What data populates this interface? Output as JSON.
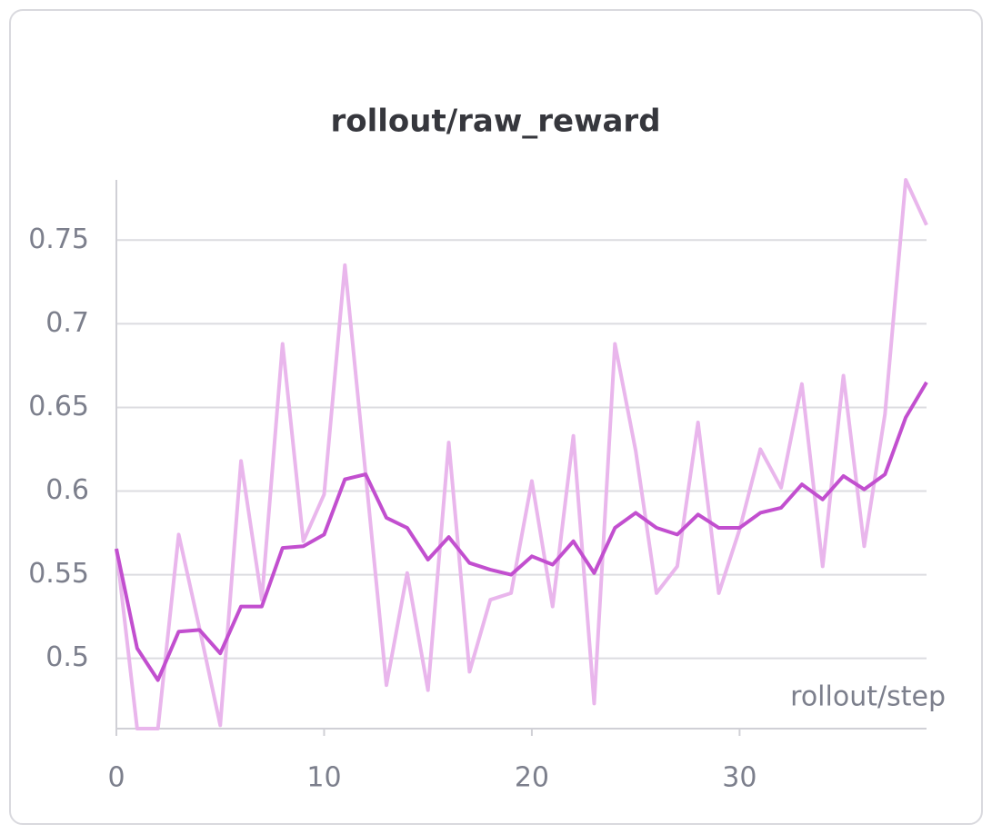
{
  "chart_data": {
    "type": "line",
    "title": "rollout/raw_reward",
    "x_label": "rollout/step",
    "x": [
      0,
      1,
      2,
      3,
      4,
      5,
      6,
      7,
      8,
      9,
      10,
      11,
      12,
      13,
      14,
      15,
      16,
      17,
      18,
      19,
      20,
      21,
      22,
      23,
      24,
      25,
      26,
      27,
      28,
      29,
      30,
      31,
      32,
      33,
      34,
      35,
      36,
      37,
      38,
      39
    ],
    "series": [
      {
        "color": "#e9b6ec",
        "values": [
          0.5655,
          0.458,
          0.458,
          0.574,
          0.518,
          0.46,
          0.618,
          0.535,
          0.688,
          0.57,
          0.598,
          0.735,
          0.61,
          0.484,
          0.551,
          0.481,
          0.629,
          0.492,
          0.535,
          0.539,
          0.606,
          0.531,
          0.633,
          0.473,
          0.688,
          0.624,
          0.539,
          0.555,
          0.641,
          0.539,
          0.577,
          0.625,
          0.602,
          0.664,
          0.555,
          0.669,
          0.567,
          0.646,
          0.786,
          0.759
        ]
      },
      {
        "color": "#c24fcf",
        "values": [
          0.5655,
          0.506,
          0.487,
          0.516,
          0.517,
          0.503,
          0.531,
          0.531,
          0.566,
          0.567,
          0.574,
          0.607,
          0.61,
          0.584,
          0.578,
          0.559,
          0.5725,
          0.557,
          0.553,
          0.55,
          0.561,
          0.556,
          0.57,
          0.551,
          0.578,
          0.587,
          0.578,
          0.574,
          0.586,
          0.578,
          0.578,
          0.587,
          0.59,
          0.604,
          0.595,
          0.609,
          0.601,
          0.61,
          0.644,
          0.665
        ]
      }
    ],
    "xlim": [
      0,
      39
    ],
    "xticks": [
      0,
      10,
      20,
      30
    ],
    "ylim": [
      0.458,
      0.786
    ],
    "yticks": [
      0.5,
      0.55,
      0.6,
      0.65,
      0.7,
      0.75
    ],
    "grid": true
  }
}
